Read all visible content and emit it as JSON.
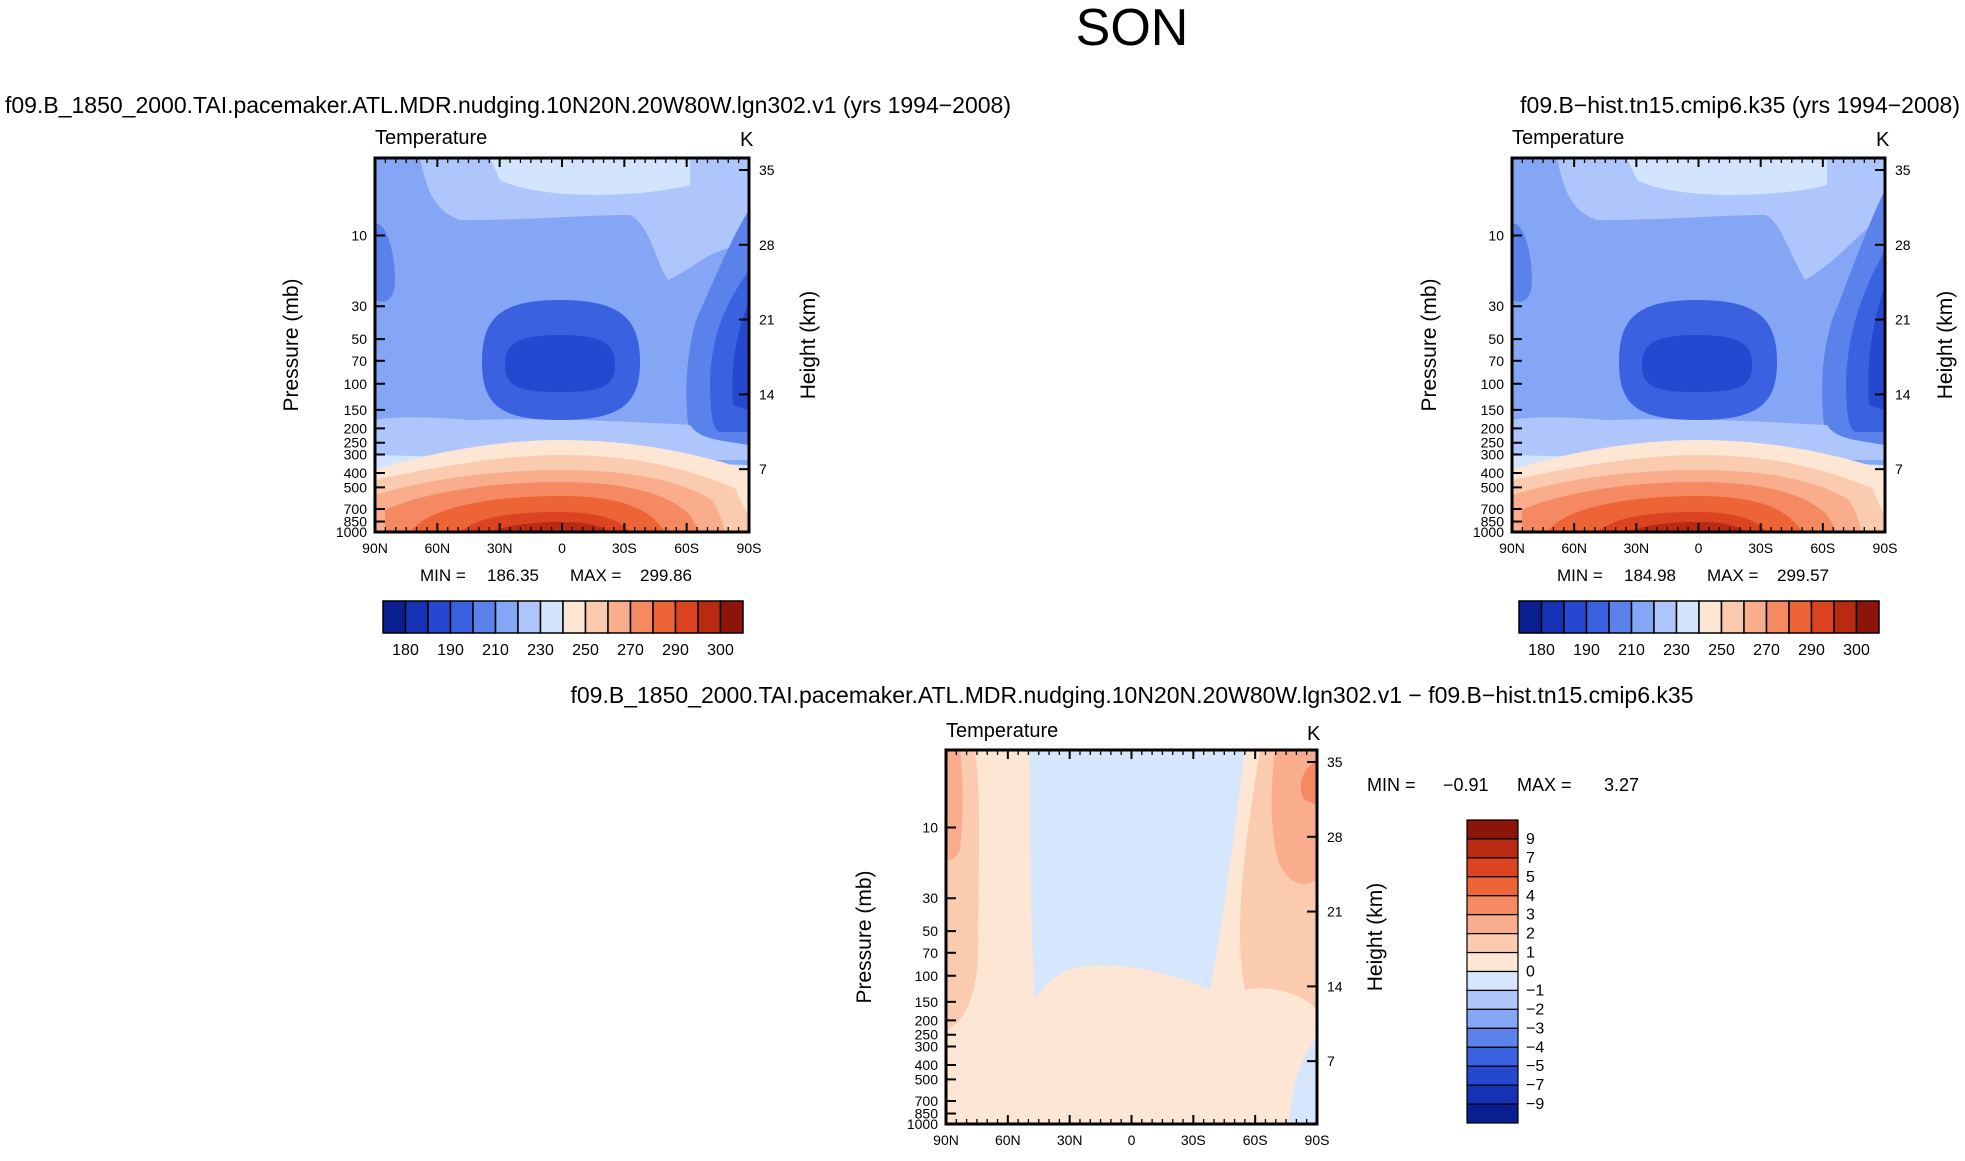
{
  "page_title": "SON",
  "chart_data": [
    {
      "id": "p1",
      "type": "contour",
      "title": "f09.B_1850_2000.TAI.pacemaker.ATL.MDR.nudging.10N20N.20W80W.lgn302.v1  (yrs 1994−2008)",
      "left_label": "Temperature",
      "right_label": "K",
      "ylabel": "Pressure  (mb)",
      "ylabel_right": "Height  (km)",
      "x_ticks": [
        "90N",
        "60N",
        "30N",
        "0",
        "30S",
        "60S",
        "90S"
      ],
      "y_ticks": [
        "10",
        "30",
        "50",
        "70",
        "100",
        "150",
        "200",
        "250",
        "300",
        "400",
        "500",
        "700",
        "850",
        "1000"
      ],
      "height_ticks": [
        "35",
        "28",
        "21",
        "14",
        "7"
      ],
      "min_label": "MIN = ",
      "min": "186.35",
      "max_label": "MAX = ",
      "max": "299.86",
      "colorbar_labels": [
        "180",
        "190",
        "210",
        "230",
        "250",
        "270",
        "290",
        "300"
      ]
    },
    {
      "id": "p2",
      "type": "contour",
      "title": "f09.B−hist.tn15.cmip6.k35  (yrs 1994−2008)",
      "left_label": "Temperature",
      "right_label": "K",
      "ylabel": "Pressure  (mb)",
      "ylabel_right": "Height  (km)",
      "x_ticks": [
        "90N",
        "60N",
        "30N",
        "0",
        "30S",
        "60S",
        "90S"
      ],
      "y_ticks": [
        "10",
        "30",
        "50",
        "70",
        "100",
        "150",
        "200",
        "250",
        "300",
        "400",
        "500",
        "700",
        "850",
        "1000"
      ],
      "height_ticks": [
        "35",
        "28",
        "21",
        "14",
        "7"
      ],
      "min_label": "MIN = ",
      "min": "184.98",
      "max_label": "MAX = ",
      "max": "299.57",
      "colorbar_labels": [
        "180",
        "190",
        "210",
        "230",
        "250",
        "270",
        "290",
        "300"
      ]
    },
    {
      "id": "p3",
      "type": "contour",
      "title": "f09.B_1850_2000.TAI.pacemaker.ATL.MDR.nudging.10N20N.20W80W.lgn302.v1  −  f09.B−hist.tn15.cmip6.k35",
      "left_label": "Temperature",
      "right_label": "K",
      "ylabel": "Pressure  (mb)",
      "ylabel_right": "Height  (km)",
      "x_ticks": [
        "90N",
        "60N",
        "30N",
        "0",
        "30S",
        "60S",
        "90S"
      ],
      "y_ticks": [
        "10",
        "30",
        "50",
        "70",
        "100",
        "150",
        "200",
        "250",
        "300",
        "400",
        "500",
        "700",
        "850",
        "1000"
      ],
      "height_ticks": [
        "35",
        "28",
        "21",
        "14",
        "7"
      ],
      "min_label": "MIN =",
      "min": "−0.91",
      "max_label": "MAX =",
      "max": "3.27",
      "colorbar_labels": [
        "9",
        "7",
        "5",
        "4",
        "3",
        "2",
        "1",
        "0",
        "−1",
        "−2",
        "−3",
        "−4",
        "−5",
        "−7",
        "−9"
      ]
    }
  ],
  "colors": {
    "abs_scale": [
      "#0a1f8f",
      "#1532b4",
      "#2448cf",
      "#3a62e0",
      "#5a82ea",
      "#84a6f4",
      "#aec6fb",
      "#d2e4fe",
      "#fde6d4",
      "#fbcbb0",
      "#f9ad8c",
      "#f58a62",
      "#ed6437",
      "#dc4320",
      "#b92a13",
      "#8c1409"
    ],
    "diff_scale": [
      "#8c1409",
      "#b92a13",
      "#dc4320",
      "#ed6437",
      "#f58a62",
      "#f9ad8c",
      "#fbcbb0",
      "#fde6d4",
      "#d6e6fd",
      "#aec6fb",
      "#84a6f4",
      "#5a82ea",
      "#3a62e0",
      "#2448cf",
      "#1532b4",
      "#0a1f8f"
    ]
  }
}
